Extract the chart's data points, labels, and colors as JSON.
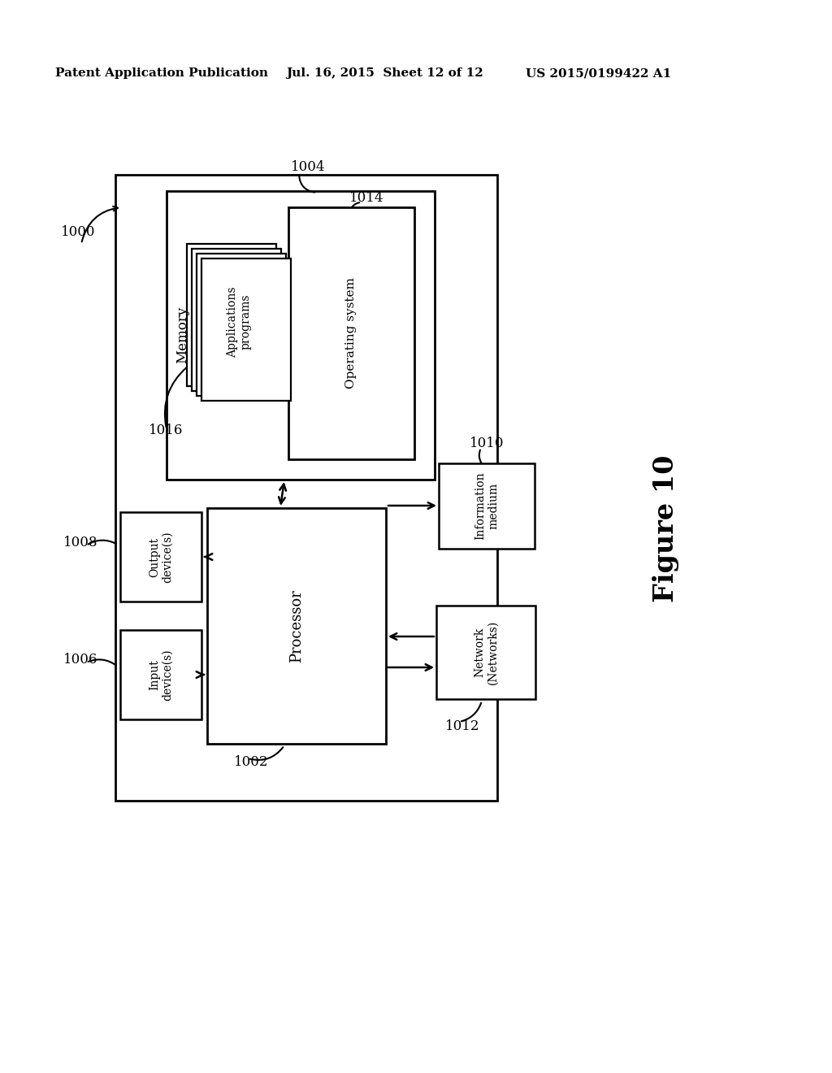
{
  "bg_color": "#ffffff",
  "text_color": "#000000",
  "header_left": "Patent Application Publication",
  "header_mid": "Jul. 16, 2015  Sheet 12 of 12",
  "header_right": "US 2015/0199422 A1",
  "figure_label": "Figure 10",
  "label_1000": "1000",
  "label_1002": "1002",
  "label_1004": "1004",
  "label_1006": "1006",
  "label_1008": "1008",
  "label_1010": "1010",
  "label_1012": "1012",
  "label_1014": "1014",
  "label_1016": "1016",
  "box_memory_text": "Memory",
  "box_os_text": "Operating system",
  "box_apps_text": "Applications\nprograms",
  "box_processor_text": "Processor",
  "box_output_text": "Output\ndevice(s)",
  "box_input_text": "Input\ndevice(s)",
  "box_info_text": "Information\nmedium",
  "box_network_text": "Network\n(Networks)"
}
